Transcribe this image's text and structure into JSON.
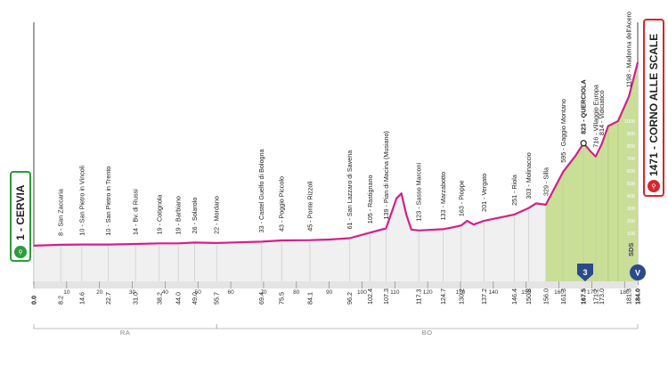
{
  "start_label": "1 - CERVIA",
  "finish_label": "1471 - CORNO ALLE SCALE",
  "sprint_badge": "3",
  "finish_badge": "V",
  "timing_tag": "SDS",
  "regions": [
    {
      "label": "RA",
      "from": 0,
      "to": 55.7
    },
    {
      "label": "BO",
      "from": 55.7,
      "to": 184.0
    }
  ],
  "chart_data": {
    "type": "area",
    "x_unit": "km",
    "y_unit": "m",
    "xlim": [
      0,
      184
    ],
    "ylim": [
      0,
      1600
    ],
    "x_ticks": [
      0,
      10,
      20,
      30,
      40,
      50,
      60,
      70,
      80,
      90,
      100,
      110,
      120,
      130,
      140,
      150,
      160,
      170,
      180
    ],
    "altitude_ticks": [
      100,
      200,
      300,
      400,
      500,
      600,
      700,
      800,
      900,
      1000
    ],
    "profile": [
      {
        "x": 0,
        "y": 1
      },
      {
        "x": 8.2,
        "y": 8
      },
      {
        "x": 14.6,
        "y": 10
      },
      {
        "x": 22.7,
        "y": 10
      },
      {
        "x": 31.0,
        "y": 14
      },
      {
        "x": 38.2,
        "y": 19
      },
      {
        "x": 44.0,
        "y": 19
      },
      {
        "x": 49.0,
        "y": 26
      },
      {
        "x": 55.7,
        "y": 22
      },
      {
        "x": 69.4,
        "y": 33
      },
      {
        "x": 75.5,
        "y": 43
      },
      {
        "x": 84.1,
        "y": 45
      },
      {
        "x": 90,
        "y": 50
      },
      {
        "x": 96.2,
        "y": 61
      },
      {
        "x": 102.4,
        "y": 105
      },
      {
        "x": 107.3,
        "y": 139
      },
      {
        "x": 110.5,
        "y": 380
      },
      {
        "x": 112.0,
        "y": 420
      },
      {
        "x": 113.5,
        "y": 250
      },
      {
        "x": 115.0,
        "y": 130
      },
      {
        "x": 117.3,
        "y": 123
      },
      {
        "x": 124.7,
        "y": 133
      },
      {
        "x": 128,
        "y": 150
      },
      {
        "x": 130.2,
        "y": 163
      },
      {
        "x": 132,
        "y": 200
      },
      {
        "x": 134,
        "y": 170
      },
      {
        "x": 137.2,
        "y": 201
      },
      {
        "x": 146.4,
        "y": 251
      },
      {
        "x": 150.8,
        "y": 303
      },
      {
        "x": 153,
        "y": 340
      },
      {
        "x": 156.0,
        "y": 329
      },
      {
        "x": 161.3,
        "y": 595
      },
      {
        "x": 165,
        "y": 720
      },
      {
        "x": 167.5,
        "y": 823
      },
      {
        "x": 169.5,
        "y": 760
      },
      {
        "x": 171.2,
        "y": 716
      },
      {
        "x": 173.0,
        "y": 814
      },
      {
        "x": 175,
        "y": 960
      },
      {
        "x": 178,
        "y": 1000
      },
      {
        "x": 181.3,
        "y": 1198
      },
      {
        "x": 184.0,
        "y": 1471
      }
    ],
    "waypoints": [
      {
        "km": 0.0,
        "km_label": "0.0",
        "label": "",
        "bold": true
      },
      {
        "km": 8.2,
        "km_label": "8.2",
        "label": "8 - San Zaccaria"
      },
      {
        "km": 14.6,
        "km_label": "14.6",
        "label": "10 - San Pietro in Vincoli"
      },
      {
        "km": 22.7,
        "km_label": "22.7",
        "label": "10 - San Pietro in Trento"
      },
      {
        "km": 31.0,
        "km_label": "31.0",
        "label": "14 - Bv. di Russi"
      },
      {
        "km": 38.2,
        "km_label": "38.2",
        "label": "19 - Cotignola"
      },
      {
        "km": 44.0,
        "km_label": "44.0",
        "label": "19 - Barbiano"
      },
      {
        "km": 49.0,
        "km_label": "49.0",
        "label": "26 - Solarolo"
      },
      {
        "km": 55.7,
        "km_label": "55.7",
        "label": "22 - Mordano"
      },
      {
        "km": 69.4,
        "km_label": "69.4",
        "label": "33 - Castel Guelfo di Bologna"
      },
      {
        "km": 75.5,
        "km_label": "75.5",
        "label": "43 - Poggio Piccolo"
      },
      {
        "km": 84.1,
        "km_label": "84.1",
        "label": "45 - Ponte Rizzoli"
      },
      {
        "km": 96.2,
        "km_label": "96.2",
        "label": "61 - San Lazzaro di Savena"
      },
      {
        "km": 102.4,
        "km_label": "102.4",
        "label": "105 - Rastignano"
      },
      {
        "km": 107.3,
        "km_label": "107.3",
        "label": "139 - Pian di Macina (Musiano)"
      },
      {
        "km": 117.3,
        "km_label": "117.3",
        "label": "123 - Sasso Marconi"
      },
      {
        "km": 124.7,
        "km_label": "124.7",
        "label": "133 - Marzabotto"
      },
      {
        "km": 130.2,
        "km_label": "130.2",
        "label": "163 - Pioppe"
      },
      {
        "km": 137.2,
        "km_label": "137.2",
        "label": "201 - Vergato"
      },
      {
        "km": 146.4,
        "km_label": "146.4",
        "label": "251 - Riola"
      },
      {
        "km": 150.8,
        "km_label": "150.8",
        "label": "303 - Molinaccio"
      },
      {
        "km": 156.0,
        "km_label": "156.0",
        "label": "329 - Silla"
      },
      {
        "km": 161.3,
        "km_label": "161.3",
        "label": "595 - Gaggio Montano"
      },
      {
        "km": 167.5,
        "km_label": "167.5",
        "label": "823 - QUERCIOLA",
        "bold": true
      },
      {
        "km": 171.2,
        "km_label": "171.2",
        "label": "716 - Villaggio Europa"
      },
      {
        "km": 173.0,
        "km_label": "173.0",
        "label": "814 - Vidiciatico"
      },
      {
        "km": 181.3,
        "km_label": "181.3",
        "label": "1198 - Madonna dell'Acero"
      },
      {
        "km": 184.0,
        "km_label": "184.0",
        "label": "",
        "bold": true
      }
    ]
  },
  "colors": {
    "profile_line": "#d4208a",
    "climb_fill": "#c9df96",
    "start_border": "#2a9d3a",
    "finish_border": "#d8262c",
    "badge_blue": "#2a4a8a"
  }
}
